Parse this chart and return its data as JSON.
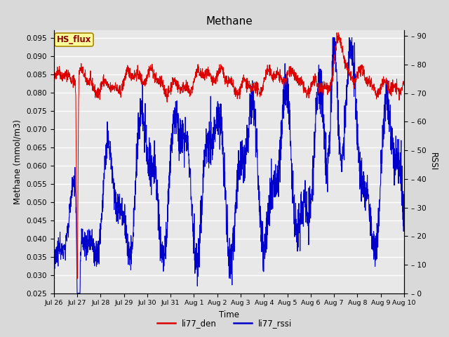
{
  "title": "Methane",
  "ylabel_left": "Methane (mmol/m3)",
  "ylabel_right": "RSSI",
  "xlabel": "Time",
  "ylim_left": [
    0.025,
    0.097
  ],
  "ylim_right": [
    0,
    92
  ],
  "yticks_left": [
    0.025,
    0.03,
    0.035,
    0.04,
    0.045,
    0.05,
    0.055,
    0.06,
    0.065,
    0.07,
    0.075,
    0.08,
    0.085,
    0.09,
    0.095
  ],
  "yticks_right": [
    0,
    10,
    20,
    30,
    40,
    50,
    60,
    70,
    80,
    90
  ],
  "color_red": "#dd0000",
  "color_blue": "#0000cc",
  "bg_color": "#d9d9d9",
  "plot_bg": "#e8e8e8",
  "xtick_labels": [
    "Jul 26",
    "Jul 27",
    "Jul 28",
    "Jul 29",
    "Jul 30",
    "Jul 31",
    "Aug 1",
    "Aug 2",
    "Aug 3",
    "Aug 4",
    "Aug 5",
    "Aug 6",
    "Aug 7",
    "Aug 8",
    "Aug 9",
    "Aug 10"
  ],
  "legend_labels": [
    "li77_den",
    "li77_rssi"
  ],
  "annotation_text": "HS_flux",
  "annotation_color": "#8b0000",
  "annotation_bg": "#ffff99",
  "n_points": 2000
}
